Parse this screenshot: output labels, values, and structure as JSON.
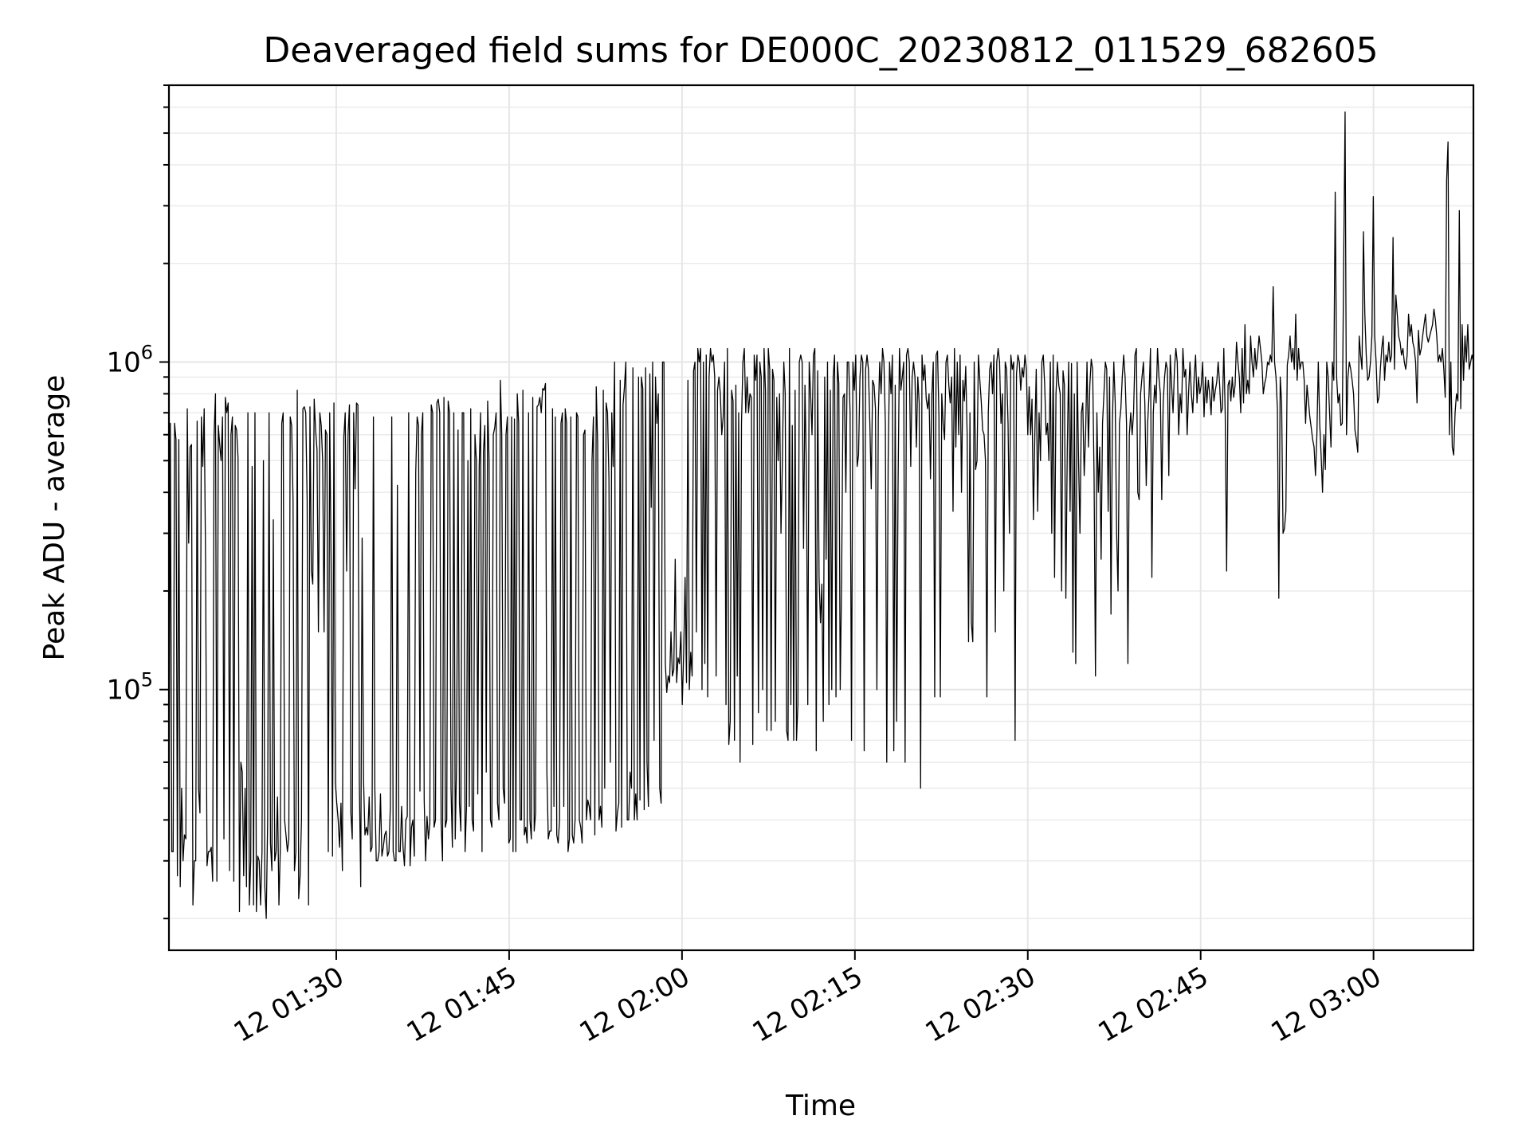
{
  "chart_data": {
    "type": "line",
    "title": "Deaveraged field sums for DE000C_20230812_011529_682605",
    "xlabel": "Time",
    "ylabel": "Peak ADU - average",
    "yscale": "log",
    "xlim": [
      "2023-08-12 01:15:29",
      "2023-08-12 03:08:40"
    ],
    "ylim": [
      16000,
      7000000
    ],
    "x_ticks": [
      "12 01:30",
      "12 01:45",
      "12 02:00",
      "12 02:15",
      "12 02:30",
      "12 02:45",
      "12 03:00"
    ],
    "y_ticks": [
      {
        "value": 100000,
        "base": "10",
        "exp": "5"
      },
      {
        "value": 1000000,
        "base": "10",
        "exp": "6"
      }
    ],
    "grid": true,
    "line_color": "#000000",
    "series": [
      {
        "x_start": "2023-08-12 01:15:29",
        "x_end": "2023-08-12 03:08:40",
        "values": [
          30000,
          650000,
          32000,
          32000,
          650000,
          580000,
          27000,
          580000,
          25000,
          50000,
          30000,
          36000,
          35000,
          720000,
          280000,
          550000,
          560000,
          22000,
          30000,
          30000,
          660000,
          50000,
          42000,
          680000,
          480000,
          720000,
          240000,
          29000,
          32000,
          32000,
          33000,
          26000,
          600000,
          800000,
          26000,
          640000,
          560000,
          500000,
          680000,
          35000,
          780000,
          700000,
          750000,
          28000,
          600000,
          680000,
          26000,
          640000,
          620000,
          510000,
          21000,
          60000,
          56000,
          27000,
          50000,
          25000,
          700000,
          22000,
          30000,
          480000,
          22000,
          700000,
          21000,
          31000,
          30000,
          22000,
          32000,
          500000,
          25000,
          20000,
          40000,
          700000,
          34000,
          28000,
          330000,
          30000,
          32000,
          47000,
          22000,
          33000,
          650000,
          700000,
          40000,
          36000,
          32000,
          35000,
          680000,
          640000,
          380000,
          28000,
          32000,
          820000,
          23000,
          27000,
          40000,
          720000,
          730000,
          700000,
          380000,
          22000,
          730000,
          230000,
          210000,
          770000,
          620000,
          540000,
          150000,
          700000,
          640000,
          500000,
          150000,
          620000,
          600000,
          32000,
          700000,
          240000,
          31000,
          750000,
          52000,
          45000,
          40000,
          33000,
          45000,
          28000,
          590000,
          700000,
          230000,
          600000,
          740000,
          42000,
          35000,
          700000,
          410000,
          750000,
          740000,
          53000,
          25000,
          290000,
          53000,
          36000,
          38000,
          36000,
          47000,
          32000,
          33000,
          680000,
          50000,
          30000,
          30000,
          32000,
          48000,
          31000,
          33000,
          36000,
          37000,
          31000,
          32000,
          44000,
          680000,
          32000,
          30000,
          30000,
          420000,
          32000,
          32000,
          44000,
          33000,
          29000,
          40000,
          41000,
          700000,
          29000,
          38000,
          40000,
          31000,
          460000,
          680000,
          640000,
          49000,
          600000,
          700000,
          46000,
          30000,
          41000,
          35000,
          39000,
          740000,
          700000,
          38000,
          40000,
          750000,
          770000,
          700000,
          39000,
          30000,
          780000,
          38000,
          40000,
          760000,
          700000,
          50000,
          33000,
          700000,
          35000,
          60000,
          620000,
          45000,
          37000,
          700000,
          700000,
          32000,
          44000,
          500000,
          44000,
          720000,
          40000,
          37000,
          600000,
          500000,
          48000,
          480000,
          700000,
          32000,
          530000,
          640000,
          56000,
          760000,
          500000,
          40000,
          38000,
          600000,
          630000,
          700000,
          45000,
          40000,
          880000,
          600000,
          50000,
          45000,
          600000,
          680000,
          34000,
          35000,
          680000,
          32000,
          670000,
          32000,
          800000,
          650000,
          40000,
          40000,
          820000,
          36000,
          38000,
          34000,
          700000,
          40000,
          35000,
          780000,
          37000,
          42000,
          730000,
          740000,
          780000,
          700000,
          830000,
          820000,
          860000,
          56000,
          35000,
          37000,
          37000,
          720000,
          44000,
          680000,
          36000,
          34000,
          40000,
          650000,
          700000,
          44000,
          720000,
          650000,
          32000,
          35000,
          680000,
          36000,
          34000,
          40000,
          700000,
          680000,
          40000,
          38000,
          34000,
          600000,
          620000,
          40000,
          46000,
          44000,
          40000,
          500000,
          680000,
          36000,
          840000,
          560000,
          40000,
          44000,
          38000,
          820000,
          50000,
          750000,
          700000,
          440000,
          60000,
          700000,
          480000,
          1000000,
          37000,
          42000,
          45000,
          880000,
          38000,
          740000,
          840000,
          1000000,
          40000,
          40000,
          56000,
          50000,
          960000,
          40000,
          48000,
          40000,
          900000,
          46000,
          900000,
          830000,
          43000,
          960000,
          60000,
          44000,
          920000,
          360000,
          1000000,
          70000,
          900000,
          650000,
          800000,
          50000,
          45000,
          1000000,
          1000000,
          120000,
          98000,
          110000,
          105000,
          150000,
          110000,
          115000,
          250000,
          105000,
          125000,
          120000,
          150000,
          90000,
          130000,
          220000,
          105000,
          880000,
          100000,
          130000,
          110000,
          940000,
          1000000,
          150000,
          1100000,
          1000000,
          1100000,
          100000,
          1000000,
          120000,
          1050000,
          95000,
          900000,
          1100000,
          1000000,
          1050000,
          900000,
          110000,
          820000,
          900000,
          800000,
          600000,
          680000,
          1000000,
          90000,
          1100000,
          68000,
          80000,
          820000,
          760000,
          70000,
          850000,
          110000,
          700000,
          60000,
          650000,
          1000000,
          1100000,
          700000,
          900000,
          700000,
          800000,
          780000,
          68000,
          1050000,
          880000,
          1050000,
          85000,
          1000000,
          900000,
          100000,
          1100000,
          820000,
          75000,
          1100000,
          950000,
          75000,
          950000,
          880000,
          80000,
          780000,
          500000,
          800000,
          300000,
          500000,
          1000000,
          800000,
          75000,
          70000,
          1100000,
          90000,
          640000,
          70000,
          820000,
          70000,
          90000,
          1000000,
          1050000,
          1000000,
          270000,
          850000,
          470000,
          90000,
          1000000,
          800000,
          600000,
          1050000,
          1100000,
          65000,
          940000,
          220000,
          160000,
          210000,
          80000,
          900000,
          250000,
          1000000,
          90000,
          820000,
          100000,
          900000,
          1050000,
          95000,
          1000000,
          860000,
          100000,
          220000,
          780000,
          800000,
          400000,
          1000000,
          1000000,
          700000,
          70000,
          1000000,
          820000,
          1050000,
          480000,
          520000,
          900000,
          1050000,
          1000000,
          65000,
          950000,
          1050000,
          950000,
          650000,
          410000,
          880000,
          850000,
          720000,
          100000,
          680000,
          1000000,
          800000,
          1100000,
          1000000,
          650000,
          60000,
          500000,
          1000000,
          800000,
          1050000,
          65000,
          850000,
          80000,
          410000,
          1100000,
          820000,
          900000,
          1000000,
          60000,
          1050000,
          1100000,
          1000000,
          480000,
          900000,
          1000000,
          900000,
          550000,
          900000,
          750000,
          50000,
          1050000,
          880000,
          980000,
          770000,
          720000,
          800000,
          440000,
          800000,
          1000000,
          95000,
          1050000,
          1080000,
          680000,
          95000,
          800000,
          650000,
          580000,
          1000000,
          1050000,
          850000,
          750000,
          900000,
          350000,
          1100000,
          550000,
          1000000,
          600000,
          1050000,
          400000,
          880000,
          760000,
          970000,
          600000,
          140000,
          700000,
          160000,
          140000,
          1000000,
          470000,
          500000,
          1050000,
          880000,
          760000,
          620000,
          600000,
          500000,
          95000,
          700000,
          950000,
          1000000,
          800000,
          1050000,
          150000,
          1000000,
          1100000,
          1000000,
          650000,
          800000,
          200000,
          1000000,
          950000,
          650000,
          300000,
          1050000,
          950000,
          1000000,
          70000,
          920000,
          1050000,
          1000000,
          820000,
          960000,
          900000,
          1050000,
          950000,
          600000,
          840000,
          600000,
          770000,
          330000,
          600000,
          950000,
          350000,
          700000,
          500000,
          1000000,
          1050000,
          850000,
          600000,
          650000,
          500000,
          1000000,
          300000,
          1050000,
          220000,
          800000,
          1000000,
          850000,
          800000,
          200000,
          940000,
          850000,
          190000,
          540000,
          1000000,
          350000,
          990000,
          130000,
          800000,
          120000,
          1000000,
          500000,
          300000,
          700000,
          750000,
          450000,
          600000,
          1000000,
          550000,
          850000,
          1020000,
          950000,
          450000,
          110000,
          700000,
          400000,
          550000,
          250000,
          650000,
          800000,
          1000000,
          950000,
          350000,
          900000,
          170000,
          650000,
          1000000,
          750000,
          300000,
          200000,
          650000,
          720000,
          900000,
          1050000,
          900000,
          650000,
          120000,
          600000,
          700000,
          600000,
          700000,
          1050000,
          1100000,
          400000,
          380000,
          800000,
          900000,
          1000000,
          750000,
          420000,
          650000,
          800000,
          1100000,
          220000,
          700000,
          850000,
          750000,
          1100000,
          900000,
          800000,
          380000,
          750000,
          900000,
          1000000,
          950000,
          450000,
          1050000,
          850000,
          700000,
          950000,
          1100000,
          1000000,
          600000,
          800000,
          700000,
          1100000,
          900000,
          950000,
          600000,
          800000,
          1000000,
          800000,
          700000,
          900000,
          1050000,
          750000,
          900000,
          800000,
          850000,
          1000000,
          680000,
          900000,
          750000,
          880000,
          800000,
          690000,
          900000,
          760000,
          820000,
          870000,
          1000000,
          860000,
          700000,
          720000,
          1100000,
          690000,
          230000,
          850000,
          880000,
          760000,
          900000,
          780000,
          850000,
          1150000,
          1000000,
          900000,
          700000,
          1100000,
          750000,
          1300000,
          800000,
          880000,
          800000,
          1200000,
          1000000,
          900000,
          1100000,
          950000,
          1050000,
          1200000,
          1100000,
          1000000,
          800000,
          860000,
          900000,
          1000000,
          980000,
          1050000,
          1000000,
          1700000,
          1000000,
          900000,
          720000,
          190000,
          900000,
          750000,
          300000,
          310000,
          350000,
          980000,
          1050000,
          1200000,
          1000000,
          1100000,
          950000,
          1400000,
          880000,
          1100000,
          950000,
          1000000,
          1000000,
          880000,
          650000,
          850000,
          760000,
          680000,
          630000,
          580000,
          550000,
          450000,
          600000,
          1000000,
          650000,
          520000,
          400000,
          600000,
          470000,
          1000000,
          900000,
          700000,
          550000,
          1000000,
          880000,
          3300000,
          900000,
          750000,
          800000,
          640000,
          650000,
          2000000,
          5800000,
          600000,
          900000,
          1000000,
          950000,
          880000,
          800000,
          620000,
          580000,
          530000,
          1200000,
          1050000,
          950000,
          2500000,
          1400000,
          1050000,
          880000,
          900000,
          1000000,
          1200000,
          3200000,
          1200000,
          1000000,
          750000,
          780000,
          950000,
          1100000,
          1200000,
          880000,
          1050000,
          1000000,
          1150000,
          1000000,
          1050000,
          2400000,
          950000,
          1600000,
          1400000,
          1200000,
          1150000,
          1050000,
          1100000,
          1000000,
          950000,
          1050000,
          1400000,
          1200000,
          1300000,
          1150000,
          1100000,
          1000000,
          750000,
          1250000,
          1050000,
          1100000,
          1200000,
          1300000,
          1400000,
          1200000,
          1150000,
          1200000,
          1250000,
          1300000,
          1450000,
          1350000,
          1200000,
          1000000,
          1050000,
          1000000,
          1100000,
          950000,
          780000,
          3600000,
          4700000,
          600000,
          1000000,
          550000,
          520000,
          700000,
          800000,
          760000,
          2900000,
          720000,
          1300000,
          880000,
          1200000,
          1000000,
          1300000,
          950000,
          1000000,
          1050000,
          1000000
        ]
      }
    ]
  }
}
